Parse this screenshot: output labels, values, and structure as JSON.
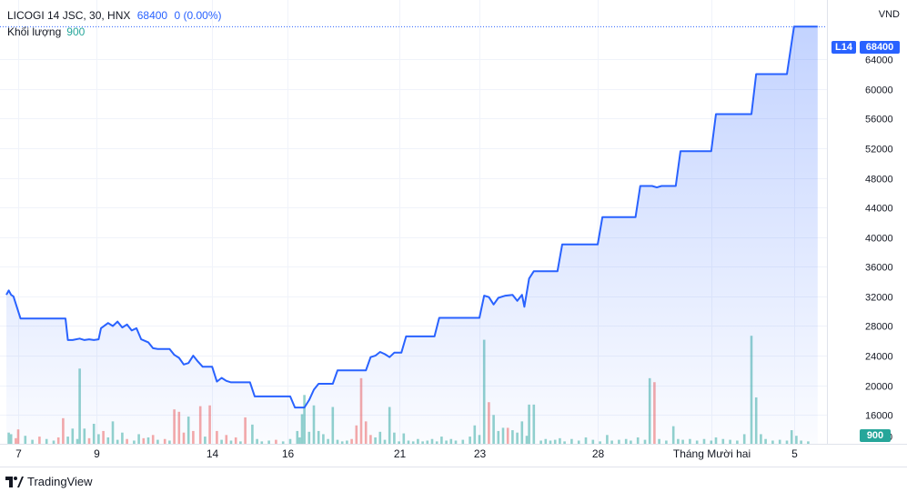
{
  "header": {
    "symbol": "LICOGI 14 JSC, 30, HNX",
    "last_price": "68400",
    "change": "0 (0.00%)",
    "volume_label": "Khối lượng",
    "volume_value": "900"
  },
  "currency": "VND",
  "price_badge": {
    "tag": "L14",
    "value": "68400"
  },
  "volume_badge": "900",
  "brand": "TradingView",
  "colors": {
    "line": "#2962ff",
    "area": "#2962ff",
    "vol_up": "#26a69a",
    "vol_down": "#ef5350",
    "grid": "#f0f3fa"
  },
  "chart_data": {
    "type": "area",
    "y_ticks": [
      16000,
      20000,
      24000,
      28000,
      32000,
      36000,
      40000,
      44000,
      48000,
      52000,
      56000,
      60000,
      64000
    ],
    "ylim": [
      12100,
      72000
    ],
    "x_ticks": [
      "7",
      "9",
      "14",
      "16",
      "21",
      "23",
      "28",
      "Tháng Mười hai",
      "5"
    ],
    "series": [
      {
        "values": [
          [
            0,
            32200
          ],
          [
            1,
            32800
          ],
          [
            2,
            32200
          ],
          [
            3,
            32000
          ],
          [
            6,
            29000
          ],
          [
            20,
            29000
          ],
          [
            25,
            29000
          ],
          [
            26,
            26100
          ],
          [
            28,
            26100
          ],
          [
            31,
            26300
          ],
          [
            33,
            26100
          ],
          [
            35,
            26200
          ],
          [
            37,
            26100
          ],
          [
            39,
            26200
          ],
          [
            40,
            27700
          ],
          [
            43,
            28400
          ],
          [
            45,
            28000
          ],
          [
            47,
            28600
          ],
          [
            49,
            27800
          ],
          [
            51,
            28200
          ],
          [
            53,
            27400
          ],
          [
            55,
            27700
          ],
          [
            57,
            26200
          ],
          [
            60,
            25800
          ],
          [
            62,
            25000
          ],
          [
            64,
            24900
          ],
          [
            69,
            24900
          ],
          [
            71,
            24100
          ],
          [
            73,
            23700
          ],
          [
            75,
            22800
          ],
          [
            77,
            23000
          ],
          [
            79,
            24000
          ],
          [
            81,
            23200
          ],
          [
            83,
            22500
          ],
          [
            87,
            22500
          ],
          [
            89,
            20500
          ],
          [
            91,
            21000
          ],
          [
            93,
            20600
          ],
          [
            95,
            20400
          ],
          [
            103,
            20400
          ],
          [
            105,
            18500
          ],
          [
            120,
            18500
          ],
          [
            122,
            17000
          ],
          [
            126,
            17000
          ],
          [
            128,
            18000
          ],
          [
            130,
            19400
          ],
          [
            132,
            20200
          ],
          [
            138,
            20200
          ],
          [
            140,
            22000
          ],
          [
            152,
            22000
          ],
          [
            154,
            23800
          ],
          [
            156,
            24000
          ],
          [
            158,
            24500
          ],
          [
            160,
            24200
          ],
          [
            162,
            23800
          ],
          [
            164,
            24400
          ],
          [
            167,
            24400
          ],
          [
            169,
            26600
          ],
          [
            181,
            26600
          ],
          [
            183,
            29100
          ],
          [
            200,
            29100
          ],
          [
            202,
            32100
          ],
          [
            204,
            31900
          ],
          [
            206,
            30900
          ],
          [
            208,
            31800
          ],
          [
            211,
            32100
          ],
          [
            214,
            32200
          ],
          [
            216,
            31400
          ],
          [
            218,
            32200
          ],
          [
            219,
            30600
          ],
          [
            221,
            34400
          ],
          [
            223,
            35400
          ],
          [
            233,
            35400
          ],
          [
            235,
            39000
          ],
          [
            250,
            39000
          ],
          [
            252,
            42700
          ],
          [
            266,
            42700
          ],
          [
            268,
            46900
          ],
          [
            273,
            46900
          ],
          [
            275,
            46700
          ],
          [
            277,
            46900
          ],
          [
            283,
            46900
          ],
          [
            285,
            51600
          ],
          [
            298,
            51600
          ],
          [
            300,
            56600
          ],
          [
            315,
            56600
          ],
          [
            317,
            62000
          ],
          [
            330,
            62000
          ],
          [
            333,
            68400
          ],
          [
            343,
            68400
          ]
        ]
      }
    ],
    "volume": [
      [
        1,
        1.4,
        0
      ],
      [
        2,
        1.2,
        0
      ],
      [
        4,
        0.7,
        1
      ],
      [
        5,
        1.8,
        1
      ],
      [
        8,
        1.0,
        0
      ],
      [
        11,
        0.5,
        0
      ],
      [
        14,
        0.9,
        1
      ],
      [
        17,
        0.6,
        0
      ],
      [
        20,
        0.4,
        0
      ],
      [
        22,
        0.8,
        1
      ],
      [
        24,
        3.2,
        1
      ],
      [
        26,
        0.9,
        0
      ],
      [
        28,
        1.9,
        0
      ],
      [
        30,
        0.6,
        0
      ],
      [
        31,
        9.4,
        0
      ],
      [
        33,
        1.9,
        0
      ],
      [
        35,
        0.7,
        1
      ],
      [
        37,
        2.5,
        0
      ],
      [
        39,
        1.2,
        0
      ],
      [
        41,
        1.6,
        1
      ],
      [
        43,
        0.8,
        0
      ],
      [
        45,
        2.8,
        0
      ],
      [
        47,
        0.5,
        0
      ],
      [
        49,
        1.4,
        0
      ],
      [
        51,
        0.6,
        1
      ],
      [
        54,
        0.4,
        0
      ],
      [
        56,
        1.2,
        0
      ],
      [
        58,
        0.7,
        1
      ],
      [
        60,
        0.8,
        0
      ],
      [
        62,
        1.1,
        1
      ],
      [
        64,
        0.5,
        0
      ],
      [
        67,
        0.6,
        1
      ],
      [
        69,
        0.4,
        0
      ],
      [
        71,
        4.3,
        1
      ],
      [
        73,
        4.0,
        1
      ],
      [
        75,
        1.4,
        1
      ],
      [
        77,
        3.4,
        0
      ],
      [
        79,
        1.6,
        1
      ],
      [
        82,
        4.7,
        1
      ],
      [
        84,
        0.9,
        0
      ],
      [
        86,
        4.8,
        1
      ],
      [
        89,
        1.6,
        1
      ],
      [
        91,
        0.5,
        0
      ],
      [
        93,
        1.1,
        1
      ],
      [
        95,
        0.4,
        0
      ],
      [
        97,
        0.8,
        1
      ],
      [
        99,
        0.3,
        0
      ],
      [
        101,
        3.3,
        1
      ],
      [
        104,
        2.4,
        0
      ],
      [
        106,
        0.6,
        0
      ],
      [
        108,
        0.3,
        0
      ],
      [
        111,
        0.4,
        0
      ],
      [
        114,
        0.5,
        1
      ],
      [
        117,
        0.3,
        0
      ],
      [
        120,
        0.6,
        0
      ],
      [
        123,
        1.6,
        0
      ],
      [
        124,
        0.8,
        0
      ],
      [
        125,
        3.7,
        0
      ],
      [
        126,
        6.1,
        0
      ],
      [
        128,
        1.5,
        0
      ],
      [
        130,
        4.8,
        0
      ],
      [
        132,
        1.6,
        0
      ],
      [
        134,
        1.2,
        0
      ],
      [
        136,
        0.6,
        0
      ],
      [
        138,
        4.6,
        0
      ],
      [
        140,
        0.5,
        0
      ],
      [
        142,
        0.3,
        0
      ],
      [
        144,
        0.4,
        0
      ],
      [
        146,
        0.6,
        1
      ],
      [
        148,
        2.3,
        1
      ],
      [
        150,
        8.2,
        1
      ],
      [
        152,
        2.8,
        1
      ],
      [
        154,
        1.1,
        1
      ],
      [
        156,
        0.8,
        0
      ],
      [
        158,
        1.5,
        0
      ],
      [
        160,
        0.5,
        0
      ],
      [
        162,
        4.6,
        0
      ],
      [
        164,
        1.4,
        0
      ],
      [
        166,
        0.3,
        0
      ],
      [
        168,
        1.3,
        0
      ],
      [
        170,
        0.4,
        0
      ],
      [
        172,
        0.3,
        0
      ],
      [
        174,
        0.6,
        0
      ],
      [
        176,
        0.3,
        0
      ],
      [
        178,
        0.4,
        0
      ],
      [
        180,
        0.6,
        0
      ],
      [
        182,
        0.3,
        0
      ],
      [
        184,
        0.9,
        0
      ],
      [
        186,
        0.4,
        0
      ],
      [
        188,
        0.6,
        0
      ],
      [
        190,
        0.4,
        0
      ],
      [
        193,
        0.5,
        0
      ],
      [
        196,
        0.9,
        0
      ],
      [
        198,
        2.3,
        0
      ],
      [
        200,
        1.1,
        0
      ],
      [
        202,
        13.0,
        0
      ],
      [
        204,
        5.2,
        1
      ],
      [
        206,
        3.6,
        0
      ],
      [
        208,
        1.6,
        0
      ],
      [
        210,
        2.0,
        0
      ],
      [
        212,
        2.0,
        1
      ],
      [
        214,
        1.7,
        0
      ],
      [
        216,
        1.4,
        0
      ],
      [
        218,
        2.8,
        0
      ],
      [
        220,
        1.0,
        0
      ],
      [
        221,
        4.9,
        0
      ],
      [
        223,
        4.9,
        0
      ],
      [
        226,
        0.4,
        0
      ],
      [
        228,
        0.6,
        0
      ],
      [
        230,
        0.4,
        0
      ],
      [
        232,
        0.5,
        0
      ],
      [
        234,
        0.7,
        0
      ],
      [
        236,
        0.3,
        0
      ],
      [
        239,
        0.6,
        0
      ],
      [
        242,
        0.4,
        0
      ],
      [
        245,
        0.8,
        0
      ],
      [
        248,
        0.5,
        0
      ],
      [
        251,
        0.3,
        0
      ],
      [
        254,
        1.1,
        0
      ],
      [
        256,
        0.4,
        0
      ],
      [
        259,
        0.5,
        0
      ],
      [
        262,
        0.6,
        0
      ],
      [
        264,
        0.4,
        0
      ],
      [
        267,
        0.8,
        0
      ],
      [
        270,
        0.5,
        0
      ],
      [
        272,
        8.2,
        0
      ],
      [
        274,
        7.7,
        1
      ],
      [
        276,
        0.6,
        0
      ],
      [
        279,
        0.4,
        0
      ],
      [
        282,
        2.2,
        0
      ],
      [
        284,
        0.6,
        0
      ],
      [
        286,
        0.5,
        0
      ],
      [
        289,
        0.6,
        0
      ],
      [
        292,
        0.4,
        0
      ],
      [
        295,
        0.6,
        0
      ],
      [
        298,
        0.4,
        0
      ],
      [
        300,
        0.8,
        0
      ],
      [
        303,
        0.6,
        0
      ],
      [
        306,
        0.5,
        0
      ],
      [
        309,
        0.4,
        0
      ],
      [
        312,
        1.2,
        0
      ],
      [
        315,
        13.5,
        0
      ],
      [
        317,
        5.8,
        0
      ],
      [
        319,
        1.2,
        0
      ],
      [
        321,
        0.6,
        0
      ],
      [
        324,
        0.4,
        0
      ],
      [
        327,
        0.5,
        0
      ],
      [
        330,
        0.4,
        0
      ],
      [
        332,
        1.7,
        0
      ],
      [
        334,
        1.0,
        0
      ],
      [
        336,
        0.4,
        0
      ],
      [
        339,
        0.3,
        0
      ]
    ]
  }
}
